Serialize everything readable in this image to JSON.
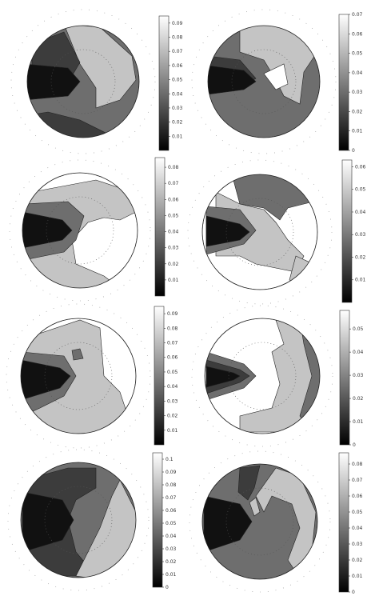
{
  "chart_data": [
    {
      "type": "heatmap",
      "panel": "row1-left",
      "colorbar_ticks": [
        "0.01",
        "0.02",
        "0.03",
        "0.04",
        "0.05",
        "0.06",
        "0.07",
        "0.08",
        "0.09"
      ],
      "colorbar_range": [
        0,
        0.095
      ]
    },
    {
      "type": "heatmap",
      "panel": "row1-right",
      "colorbar_ticks": [
        "0",
        "0.01",
        "0.02",
        "0.03",
        "0.04",
        "0.05",
        "0.06",
        "0.07"
      ],
      "colorbar_range": [
        0,
        0.07
      ]
    },
    {
      "type": "heatmap",
      "panel": "row2-left",
      "colorbar_ticks": [
        "0.01",
        "0.02",
        "0.03",
        "0.04",
        "0.05",
        "0.06",
        "0.07",
        "0.08"
      ],
      "colorbar_range": [
        0,
        0.086
      ]
    },
    {
      "type": "heatmap",
      "panel": "row2-right",
      "colorbar_ticks": [
        "0.01",
        "0.02",
        "0.03",
        "0.04",
        "0.05",
        "0.06"
      ],
      "colorbar_range": [
        0,
        0.063
      ]
    },
    {
      "type": "heatmap",
      "panel": "row3-left",
      "colorbar_ticks": [
        "0.01",
        "0.02",
        "0.03",
        "0.04",
        "0.05",
        "0.06",
        "0.07",
        "0.08",
        "0.09"
      ],
      "colorbar_range": [
        0,
        0.095
      ]
    },
    {
      "type": "heatmap",
      "panel": "row3-right",
      "colorbar_ticks": [
        "0",
        "0.01",
        "0.02",
        "0.03",
        "0.04",
        "0.05"
      ],
      "colorbar_range": [
        0,
        0.058
      ]
    },
    {
      "type": "heatmap",
      "panel": "row4-left",
      "colorbar_ticks": [
        "0",
        "0.01",
        "0.02",
        "0.03",
        "0.04",
        "0.05",
        "0.06",
        "0.07",
        "0.08",
        "0.09",
        "0.1"
      ],
      "colorbar_range": [
        0,
        0.105
      ]
    },
    {
      "type": "heatmap",
      "panel": "row4-right",
      "colorbar_ticks": [
        "0",
        "0.01",
        "0.02",
        "0.03",
        "0.04",
        "0.05",
        "0.06",
        "0.07",
        "0.08"
      ],
      "colorbar_range": [
        0,
        0.087
      ]
    }
  ],
  "colors": {
    "dark": "#111111",
    "mid_dark": "#3c3c3c",
    "mid": "#6e6e6e",
    "light": "#c4c4c4",
    "grid_dot": "#888888"
  }
}
